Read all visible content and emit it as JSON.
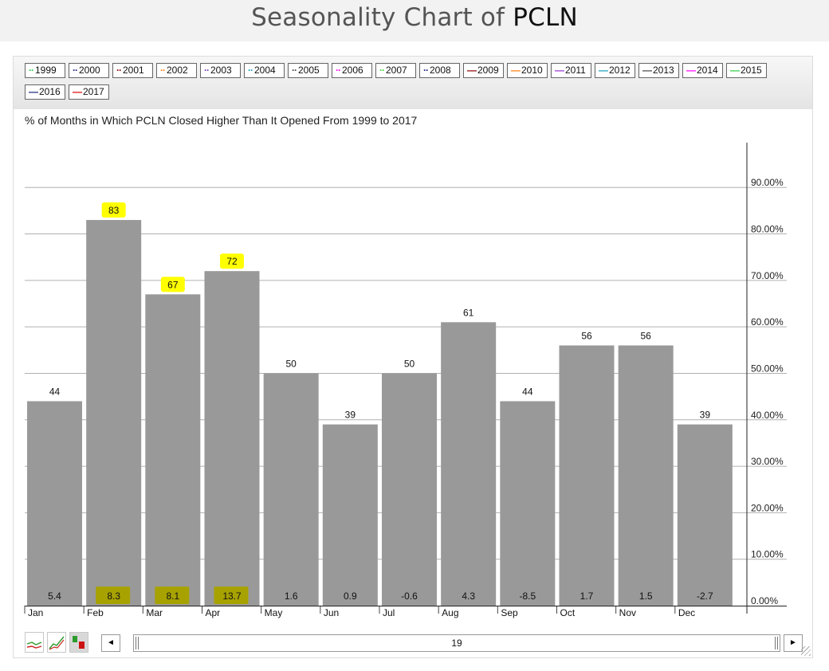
{
  "header": {
    "title_prefix": "Seasonality Chart of ",
    "title_ticker": "PCLN"
  },
  "legend": {
    "items": [
      {
        "year": "1999",
        "color": "#2ecc40",
        "marker": "··"
      },
      {
        "year": "2000",
        "color": "#1a237e",
        "marker": "··"
      },
      {
        "year": "2001",
        "color": "#8b0000",
        "marker": "··"
      },
      {
        "year": "2002",
        "color": "#ff7f0e",
        "marker": "··"
      },
      {
        "year": "2003",
        "color": "#7b3fbf",
        "marker": "··"
      },
      {
        "year": "2004",
        "color": "#17a2b8",
        "marker": "··"
      },
      {
        "year": "2005",
        "color": "#444444",
        "marker": "··"
      },
      {
        "year": "2006",
        "color": "#ff00ff",
        "marker": "··"
      },
      {
        "year": "2007",
        "color": "#3cd63c",
        "marker": "··"
      },
      {
        "year": "2008",
        "color": "#1a237e",
        "marker": "··"
      },
      {
        "year": "2009",
        "color": "#8b0000",
        "marker": "—"
      },
      {
        "year": "2010",
        "color": "#ff7f0e",
        "marker": "—"
      },
      {
        "year": "2011",
        "color": "#9932cc",
        "marker": "—"
      },
      {
        "year": "2012",
        "color": "#17a2b8",
        "marker": "—"
      },
      {
        "year": "2013",
        "color": "#444444",
        "marker": "—"
      },
      {
        "year": "2014",
        "color": "#ff00ff",
        "marker": "—"
      },
      {
        "year": "2015",
        "color": "#2ecc40",
        "marker": "—"
      },
      {
        "year": "2016",
        "color": "#1a237e",
        "marker": "—"
      },
      {
        "year": "2017",
        "color": "#e00000",
        "marker": "—"
      }
    ]
  },
  "toolbar": {
    "scroll_left": "◄",
    "scroll_right": "►",
    "scroll_value": "19",
    "icons": [
      "line-chart-icon",
      "multi-line-chart-icon",
      "bar-chart-icon"
    ]
  },
  "colors": {
    "bar": "#999999",
    "highlight": "#ffff00",
    "grid": "#b0b0b0",
    "axis": "#222222"
  },
  "chart_data": {
    "type": "bar",
    "title": "% of Months in Which PCLN Closed Higher Than It Opened From 1999 to 2017",
    "categories": [
      "Jan",
      "Feb",
      "Mar",
      "Apr",
      "May",
      "Jun",
      "Jul",
      "Aug",
      "Sep",
      "Oct",
      "Nov",
      "Dec"
    ],
    "values": [
      44,
      83,
      67,
      72,
      50,
      39,
      50,
      61,
      44,
      56,
      56,
      39
    ],
    "value_labels": [
      "44",
      "83",
      "67",
      "72",
      "50",
      "39",
      "50",
      "61",
      "44",
      "56",
      "56",
      "39"
    ],
    "avg_return_labels": [
      "5.4",
      "8.3",
      "8.1",
      "13.7",
      "1.6",
      "0.9",
      "-0.6",
      "4.3",
      "-8.5",
      "1.7",
      "1.5",
      "-2.7"
    ],
    "highlighted_months": [
      "Feb",
      "Mar",
      "Apr"
    ],
    "ylim": [
      0,
      100
    ],
    "y_ticks": [
      0,
      10,
      20,
      30,
      40,
      50,
      60,
      70,
      80,
      90
    ],
    "y_tick_labels": [
      "0.00%",
      "10.00%",
      "20.00%",
      "30.00%",
      "40.00%",
      "50.00%",
      "60.00%",
      "70.00%",
      "80.00%",
      "90.00%"
    ],
    "y_axis_side": "right",
    "grid": true,
    "legend_position": "top"
  }
}
